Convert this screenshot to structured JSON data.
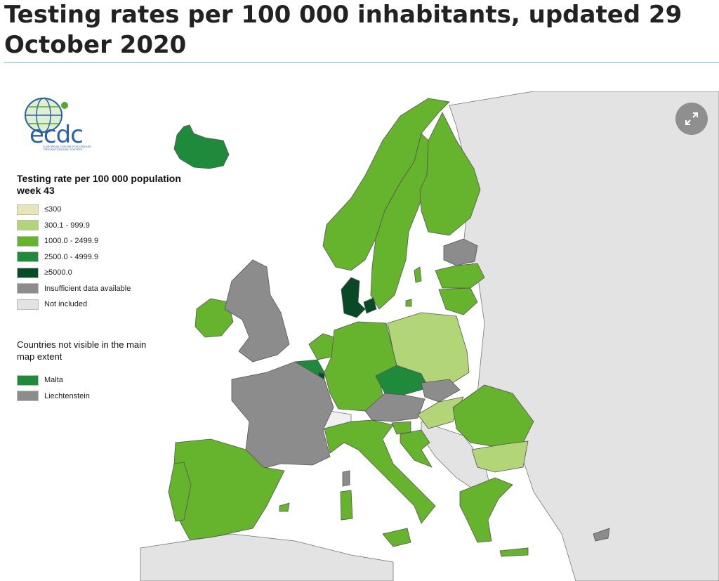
{
  "page": {
    "title": "Testing rates per 100 000 inhabitants, updated 29 October 2020"
  },
  "logo": {
    "text": "ecdc",
    "subtitle": "EUROPEAN CENTRE FOR DISEASE PREVENTION AND CONTROL"
  },
  "legend": {
    "title": "Testing rate per 100 000 population week 43",
    "items": [
      {
        "label": "≤300",
        "color": "#e8e6b6"
      },
      {
        "label": "300.1 - 999.9",
        "color": "#b2d577"
      },
      {
        "label": "1000.0 - 2499.9",
        "color": "#66b32e"
      },
      {
        "label": "2500.0 - 4999.9",
        "color": "#208a3c"
      },
      {
        "label": "≥5000.0",
        "color": "#084a26"
      },
      {
        "label": "Insufficient data available",
        "color": "#8c8c8c"
      },
      {
        "label": "Not included",
        "color": "#e3e3e3"
      }
    ]
  },
  "not_visible": {
    "title": "Countries not visible in the main map extent",
    "items": [
      {
        "label": "Malta",
        "color": "#208a3c"
      },
      {
        "label": "Liechtenstein",
        "color": "#8c8c8c"
      }
    ]
  },
  "colors": {
    "sea": "#ffffff",
    "outside": "#e3e3e3",
    "border": "#555555"
  },
  "icons": {
    "expand": "expand-arrows-icon"
  }
}
